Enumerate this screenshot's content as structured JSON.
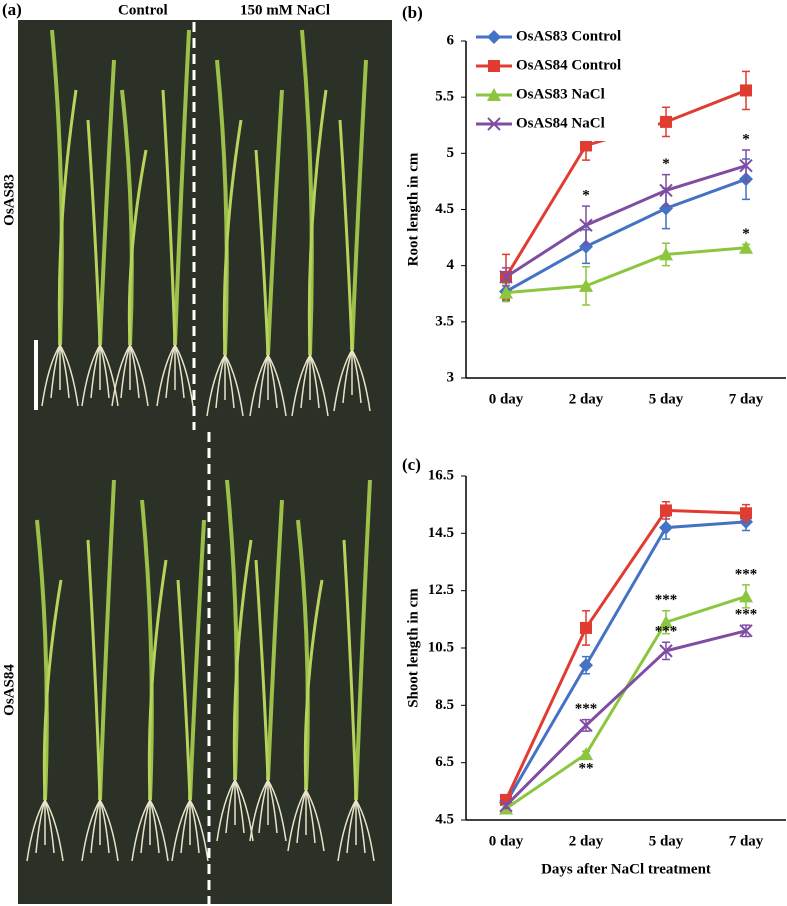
{
  "photo_panel": {
    "label": "(a)",
    "columns": [
      "Control",
      "150 mM NaCl"
    ],
    "rows": [
      "OsAS83",
      "OsAS84"
    ]
  },
  "chart_data": [
    {
      "type": "line",
      "title": "(b)",
      "y_label": "Root length in cm",
      "categories": [
        "0 day",
        "2 day",
        "5 day",
        "7 day"
      ],
      "ylim": [
        3,
        6
      ],
      "yticks": [
        3,
        3.5,
        4,
        4.5,
        5,
        5.5,
        6
      ],
      "legend": "upper left",
      "series": [
        {
          "name": "OsAS83 Control",
          "color": "#4472c4",
          "marker": "diamond",
          "values": [
            3.77,
            4.17,
            4.51,
            4.77
          ],
          "errors": [
            0.08,
            0.15,
            0.18,
            0.18
          ]
        },
        {
          "name": "OsAS84 Control",
          "color": "#e03c31",
          "marker": "square",
          "values": [
            3.9,
            5.07,
            5.28,
            5.56
          ],
          "errors": [
            0.2,
            0.13,
            0.13,
            0.17
          ]
        },
        {
          "name": "OsAS83 NaCl",
          "color": "#8cc63f",
          "marker": "triangle",
          "values": [
            3.76,
            3.82,
            4.1,
            4.16
          ],
          "errors": [
            0.08,
            0.17,
            0.1,
            0.03
          ]
        },
        {
          "name": "OsAS84 NaCl",
          "color": "#7f4ea3",
          "marker": "x",
          "values": [
            3.9,
            4.36,
            4.67,
            4.89
          ],
          "errors": [
            0.08,
            0.17,
            0.14,
            0.14
          ]
        }
      ],
      "annotations": [
        {
          "text": "*",
          "series": 3,
          "index": 1,
          "side": "above"
        },
        {
          "text": "*",
          "series": 3,
          "index": 2,
          "side": "above"
        },
        {
          "text": "*",
          "series": 3,
          "index": 3,
          "side": "above"
        },
        {
          "text": "*",
          "series": 2,
          "index": 3,
          "side": "above"
        }
      ]
    },
    {
      "type": "line",
      "title": "(c)",
      "y_label": "Shoot length in cm",
      "x_label": "Days after NaCl treatment",
      "categories": [
        "0 day",
        "2 day",
        "5 day",
        "7 day"
      ],
      "ylim": [
        4.5,
        16.5
      ],
      "yticks": [
        4.5,
        6.5,
        8.5,
        10.5,
        12.5,
        14.5,
        16.5
      ],
      "series": [
        {
          "name": "OsAS83 Control",
          "color": "#4472c4",
          "marker": "diamond",
          "values": [
            5.1,
            9.9,
            14.7,
            14.9
          ],
          "errors": [
            0.1,
            0.3,
            0.4,
            0.3
          ]
        },
        {
          "name": "OsAS84 Control",
          "color": "#e03c31",
          "marker": "square",
          "values": [
            5.2,
            11.2,
            15.3,
            15.2
          ],
          "errors": [
            0.1,
            0.6,
            0.3,
            0.3
          ]
        },
        {
          "name": "OsAS83 NaCl",
          "color": "#8cc63f",
          "marker": "triangle",
          "values": [
            4.9,
            6.8,
            11.4,
            12.3
          ],
          "errors": [
            0.1,
            0.1,
            0.4,
            0.4
          ]
        },
        {
          "name": "OsAS84 NaCl",
          "color": "#7f4ea3",
          "marker": "x",
          "values": [
            5.0,
            7.8,
            10.4,
            11.1
          ],
          "errors": [
            0.1,
            0.2,
            0.3,
            0.2
          ]
        }
      ],
      "annotations": [
        {
          "text": "***",
          "series": 3,
          "index": 1,
          "side": "above"
        },
        {
          "text": "**",
          "series": 2,
          "index": 1,
          "side": "below"
        },
        {
          "text": "***",
          "series": 2,
          "index": 2,
          "side": "above"
        },
        {
          "text": "***",
          "series": 3,
          "index": 2,
          "side": "above"
        },
        {
          "text": "***",
          "series": 2,
          "index": 3,
          "side": "above"
        },
        {
          "text": "***",
          "series": 3,
          "index": 3,
          "side": "above"
        }
      ]
    }
  ]
}
